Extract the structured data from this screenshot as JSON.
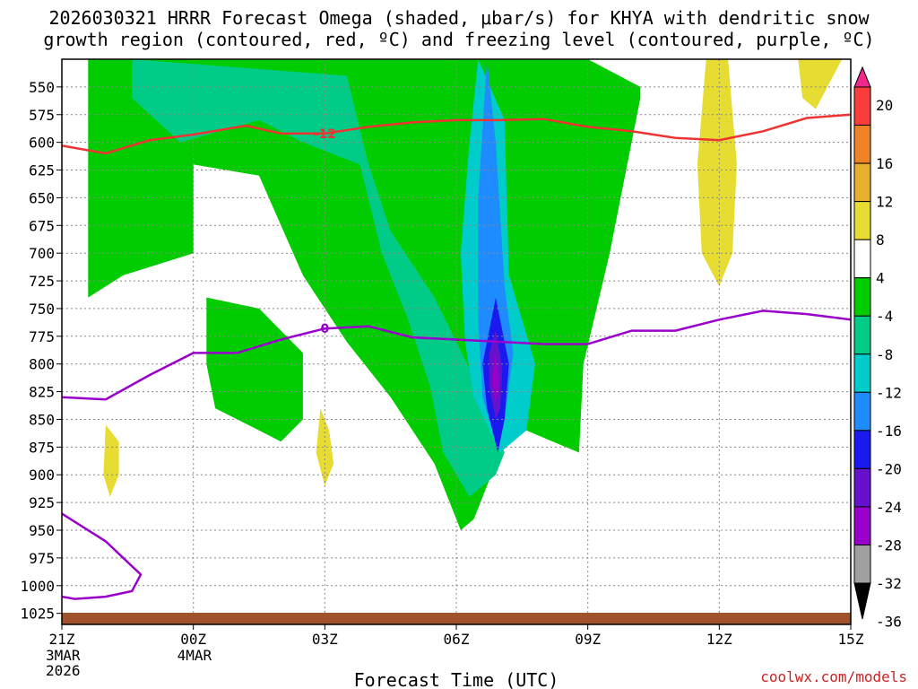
{
  "colors": {
    "freezing_level": "#9900cc",
    "dgz": "#ee3333",
    "ground": "#a0522d",
    "credit": "#cc2222"
  },
  "chart_data": {
    "type": "contour-heatmap",
    "title_line1": "2026030321 HRRR Forecast Omega (shaded, μbar/s) for KHYA with dendritic snow",
    "title_line2": "growth region (contoured, red, ºC) and freezing level (contoured, purple, ºC)",
    "xlabel": "Forecast Time (UTC)",
    "credit": "coolwx.com/models",
    "x_range_hours": [
      0,
      18
    ],
    "x_ticks": [
      {
        "hour": 0,
        "label": "21Z",
        "sub1": "3MAR",
        "sub2": "2026"
      },
      {
        "hour": 3,
        "label": "00Z",
        "sub1": "4MAR",
        "sub2": ""
      },
      {
        "hour": 6,
        "label": "03Z",
        "sub1": "",
        "sub2": ""
      },
      {
        "hour": 9,
        "label": "06Z",
        "sub1": "",
        "sub2": ""
      },
      {
        "hour": 12,
        "label": "09Z",
        "sub1": "",
        "sub2": ""
      },
      {
        "hour": 15,
        "label": "12Z",
        "sub1": "",
        "sub2": ""
      },
      {
        "hour": 18,
        "label": "15Z",
        "sub1": "",
        "sub2": ""
      }
    ],
    "y_range_mb": [
      1035,
      525
    ],
    "y_ticks": [
      550,
      575,
      600,
      625,
      650,
      675,
      700,
      725,
      750,
      775,
      800,
      825,
      850,
      875,
      900,
      925,
      950,
      975,
      1000,
      1025
    ],
    "colorbar": {
      "levels": [
        -36,
        -32,
        -28,
        -24,
        -20,
        -16,
        -12,
        -8,
        -4,
        4,
        8,
        12,
        16,
        20
      ],
      "labels": [
        "20",
        "16",
        "12",
        "8",
        "4",
        "-4",
        "-8",
        "-12",
        "-16",
        "-20",
        "-24",
        "-28",
        "-32",
        "-36"
      ],
      "colors": [
        "#000000",
        "#a0a0a0",
        "#9900cc",
        "#6611cc",
        "#1a1aee",
        "#1e8cff",
        "#00cccc",
        "#00cc88",
        "#00cc00",
        "#ffffff",
        "#e6dc32",
        "#e6af2d",
        "#f08228",
        "#fa3c3c",
        "#f0288c"
      ]
    },
    "shaded_regions": [
      {
        "fill": "#00cc00",
        "value_range": "-8 to -4",
        "points": [
          [
            0.6,
            525
          ],
          [
            0.6,
            740
          ],
          [
            1.4,
            720
          ],
          [
            3,
            700
          ],
          [
            3,
            620
          ],
          [
            4.5,
            630
          ],
          [
            5.5,
            720
          ],
          [
            6.5,
            780
          ],
          [
            7.5,
            830
          ],
          [
            8.5,
            890
          ],
          [
            9.1,
            950
          ],
          [
            9.4,
            940
          ],
          [
            9.8,
            900
          ],
          [
            10,
            850
          ],
          [
            11.8,
            880
          ],
          [
            11.9,
            800
          ],
          [
            12.5,
            700
          ],
          [
            13.2,
            560
          ],
          [
            13.2,
            550
          ],
          [
            12,
            525
          ]
        ]
      },
      {
        "fill": "#00cc00",
        "value_range": "-8 to -4",
        "points": [
          [
            3.3,
            740
          ],
          [
            4.5,
            750
          ],
          [
            5.5,
            790
          ],
          [
            5.5,
            850
          ],
          [
            5,
            870
          ],
          [
            4.5,
            860
          ],
          [
            3.5,
            840
          ],
          [
            3.3,
            800
          ]
        ]
      },
      {
        "fill": "#00cc88",
        "value_range": "-12 to -8",
        "points": [
          [
            1.6,
            525
          ],
          [
            6.5,
            540
          ],
          [
            7,
            620
          ],
          [
            7.5,
            680
          ],
          [
            8.5,
            740
          ],
          [
            9.5,
            820
          ],
          [
            10.1,
            880
          ],
          [
            9.9,
            900
          ],
          [
            9.3,
            920
          ],
          [
            8.7,
            880
          ],
          [
            8.4,
            820
          ],
          [
            7.9,
            760
          ],
          [
            7.3,
            700
          ],
          [
            6.8,
            620
          ],
          [
            5.5,
            600
          ],
          [
            4.5,
            580
          ],
          [
            2.7,
            600
          ],
          [
            1.6,
            560
          ]
        ]
      },
      {
        "fill": "#00cccc",
        "value_range": "-16 to -12",
        "points": [
          [
            9.5,
            525
          ],
          [
            10.1,
            580
          ],
          [
            10.2,
            720
          ],
          [
            10.8,
            800
          ],
          [
            10.6,
            860
          ],
          [
            10,
            880
          ],
          [
            9.4,
            830
          ],
          [
            9.2,
            780
          ],
          [
            9.1,
            700
          ],
          [
            9.3,
            600
          ]
        ]
      },
      {
        "fill": "#1e8cff",
        "value_range": "-20 to -16",
        "points": [
          [
            9.7,
            525
          ],
          [
            9.9,
            600
          ],
          [
            10.1,
            730
          ],
          [
            10.3,
            790
          ],
          [
            10.1,
            850
          ],
          [
            9.9,
            870
          ],
          [
            9.6,
            830
          ],
          [
            9.5,
            760
          ],
          [
            9.5,
            650
          ]
        ]
      },
      {
        "fill": "#1a1aee",
        "value_range": "-24 to -20",
        "points": [
          [
            9.9,
            740
          ],
          [
            10.2,
            800
          ],
          [
            10.1,
            850
          ],
          [
            9.95,
            880
          ],
          [
            9.7,
            840
          ],
          [
            9.6,
            800
          ]
        ]
      },
      {
        "fill": "#6611cc",
        "value_range": "-28 to -24",
        "points": [
          [
            9.9,
            770
          ],
          [
            10.05,
            805
          ],
          [
            10,
            840
          ],
          [
            9.9,
            850
          ],
          [
            9.75,
            820
          ],
          [
            9.75,
            790
          ]
        ]
      },
      {
        "fill": "#9900cc",
        "value_range": "-32 to -28",
        "points": [
          [
            9.9,
            790
          ],
          [
            9.98,
            815
          ],
          [
            9.9,
            835
          ],
          [
            9.82,
            815
          ]
        ]
      },
      {
        "fill": "#e6dc32",
        "value_range": "4 to 8",
        "points": [
          [
            14.7,
            525
          ],
          [
            15.2,
            525
          ],
          [
            15.4,
            620
          ],
          [
            15.3,
            700
          ],
          [
            15,
            730
          ],
          [
            14.6,
            700
          ],
          [
            14.5,
            620
          ]
        ]
      },
      {
        "fill": "#e6dc32",
        "value_range": "4 to 8",
        "points": [
          [
            16.8,
            525
          ],
          [
            17.8,
            525
          ],
          [
            17.2,
            570
          ],
          [
            16.9,
            560
          ]
        ]
      },
      {
        "fill": "#e6dc32",
        "value_range": "4 to 8",
        "points": [
          [
            1,
            855
          ],
          [
            1.3,
            870
          ],
          [
            1.3,
            900
          ],
          [
            1.1,
            920
          ],
          [
            0.95,
            900
          ]
        ]
      },
      {
        "fill": "#e6dc32",
        "value_range": "4 to 8",
        "points": [
          [
            5.9,
            840
          ],
          [
            6.1,
            860
          ],
          [
            6.2,
            890
          ],
          [
            6,
            910
          ],
          [
            5.8,
            880
          ]
        ]
      }
    ],
    "series": [
      {
        "name": "Dendritic growth region (-12 °C)",
        "color": "#ee3333",
        "label": "-12",
        "points": [
          [
            0,
            603
          ],
          [
            1,
            610
          ],
          [
            2,
            598
          ],
          [
            3,
            593
          ],
          [
            4.2,
            585
          ],
          [
            5,
            592
          ],
          [
            6,
            592
          ],
          [
            7,
            586
          ],
          [
            8,
            582
          ],
          [
            9,
            580
          ],
          [
            10,
            580
          ],
          [
            11,
            579
          ],
          [
            12,
            586
          ],
          [
            13,
            590
          ],
          [
            14,
            596
          ],
          [
            15,
            598
          ],
          [
            16,
            590
          ],
          [
            17,
            578
          ],
          [
            18,
            575
          ]
        ]
      },
      {
        "name": "Freezing level (0 °C)",
        "color": "#9900cc",
        "label": "0",
        "points": [
          [
            0,
            830
          ],
          [
            1,
            832
          ],
          [
            2,
            810
          ],
          [
            3,
            790
          ],
          [
            4,
            790
          ],
          [
            5,
            778
          ],
          [
            6,
            768
          ],
          [
            7,
            766
          ],
          [
            8,
            776
          ],
          [
            9,
            778
          ],
          [
            10,
            780
          ],
          [
            11,
            782
          ],
          [
            12,
            782
          ],
          [
            13,
            770
          ],
          [
            14,
            770
          ],
          [
            15,
            760
          ],
          [
            16,
            752
          ],
          [
            17,
            755
          ],
          [
            18,
            760
          ]
        ]
      },
      {
        "name": "Freezing level (0 °C) low",
        "color": "#9900cc",
        "label": "",
        "points": [
          [
            0,
            935
          ],
          [
            1,
            960
          ],
          [
            1.8,
            990
          ],
          [
            1.6,
            1005
          ],
          [
            1,
            1010
          ],
          [
            0.3,
            1012
          ],
          [
            0,
            1010
          ]
        ]
      }
    ]
  }
}
